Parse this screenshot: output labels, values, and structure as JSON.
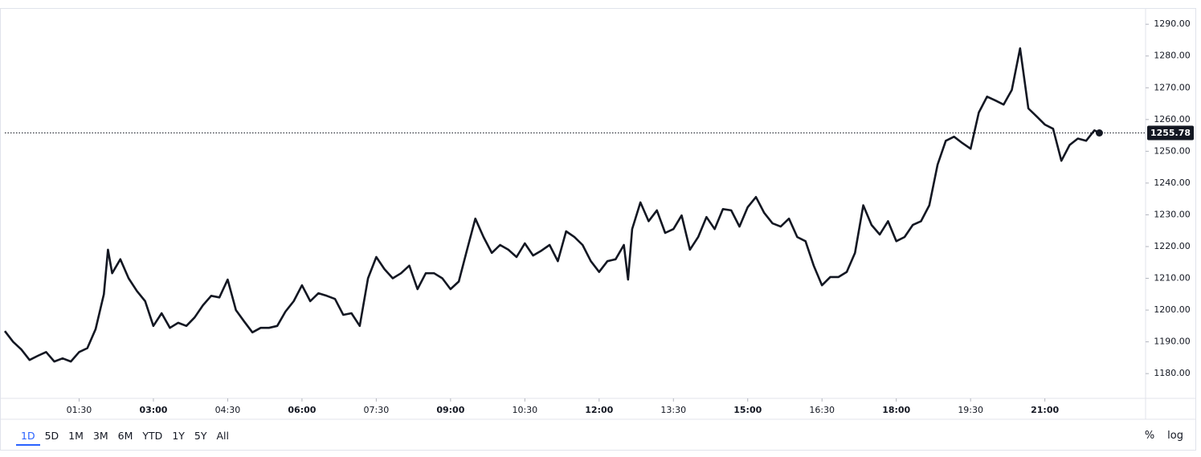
{
  "chart_data": {
    "type": "line",
    "color": "#131722",
    "x": [
      "00:00",
      "00:10",
      "00:20",
      "00:30",
      "00:40",
      "00:50",
      "01:00",
      "01:10",
      "01:20",
      "01:30",
      "01:40",
      "01:50",
      "02:00",
      "02:05",
      "02:10",
      "02:20",
      "02:30",
      "02:40",
      "02:50",
      "03:00",
      "03:10",
      "03:20",
      "03:30",
      "03:40",
      "03:50",
      "04:00",
      "04:10",
      "04:20",
      "04:30",
      "04:40",
      "04:50",
      "05:00",
      "05:10",
      "05:20",
      "05:30",
      "05:40",
      "05:50",
      "06:00",
      "06:10",
      "06:20",
      "06:30",
      "06:40",
      "06:50",
      "07:00",
      "07:10",
      "07:20",
      "07:30",
      "07:40",
      "07:50",
      "08:00",
      "08:10",
      "08:20",
      "08:30",
      "08:40",
      "08:50",
      "09:00",
      "09:10",
      "09:20",
      "09:30",
      "09:40",
      "09:50",
      "10:00",
      "10:10",
      "10:20",
      "10:30",
      "10:40",
      "10:50",
      "11:00",
      "11:10",
      "11:20",
      "11:30",
      "11:40",
      "11:50",
      "12:00",
      "12:10",
      "12:20",
      "12:30",
      "12:35",
      "12:40",
      "12:50",
      "13:00",
      "13:10",
      "13:20",
      "13:30",
      "13:40",
      "13:50",
      "14:00",
      "14:10",
      "14:20",
      "14:30",
      "14:40",
      "14:50",
      "15:00",
      "15:10",
      "15:20",
      "15:30",
      "15:40",
      "15:50",
      "16:00",
      "16:10",
      "16:20",
      "16:30",
      "16:40",
      "16:50",
      "17:00",
      "17:10",
      "17:20",
      "17:30",
      "17:40",
      "17:50",
      "18:00",
      "18:10",
      "18:20",
      "18:30",
      "18:40",
      "18:50",
      "19:00",
      "19:10",
      "19:20",
      "19:30",
      "19:40",
      "19:50",
      "20:00",
      "20:10",
      "20:20",
      "20:30",
      "20:40",
      "20:50",
      "21:00",
      "21:10",
      "21:20",
      "21:30",
      "21:40",
      "21:50",
      "22:00",
      "22:06"
    ],
    "values": [
      1193.4,
      1190,
      1187.6,
      1184.3,
      1185.6,
      1186.8,
      1183.8,
      1184.8,
      1183.8,
      1186.8,
      1188,
      1194,
      1205,
      1219,
      1211.6,
      1216,
      1210,
      1206,
      1202.8,
      1195,
      1199,
      1194.4,
      1196,
      1195,
      1197.7,
      1201.5,
      1204.5,
      1204,
      1209.6,
      1200,
      1196.4,
      1193,
      1194.4,
      1194.4,
      1195,
      1199.5,
      1202.8,
      1207.8,
      1202.8,
      1205.3,
      1204.5,
      1203.5,
      1198.5,
      1199,
      1195,
      1210,
      1216.7,
      1212.9,
      1210,
      1211.6,
      1214,
      1206.6,
      1211.6,
      1211.6,
      1210,
      1206.6,
      1209,
      1219,
      1228.8,
      1223,
      1218,
      1220.5,
      1219,
      1216.7,
      1221,
      1217.2,
      1218.7,
      1220.5,
      1215.4,
      1224.8,
      1223,
      1220.5,
      1215.4,
      1212,
      1215.4,
      1216,
      1220.5,
      1209.6,
      1225.5,
      1233.9,
      1228,
      1231.4,
      1224.3,
      1225.5,
      1229.8,
      1219,
      1223,
      1229.3,
      1225.5,
      1231.8,
      1231.4,
      1226.3,
      1232.4,
      1235.6,
      1230.6,
      1227.3,
      1226.3,
      1228.8,
      1223,
      1221.7,
      1214,
      1207.8,
      1210.4,
      1210.4,
      1212,
      1218,
      1233,
      1226.8,
      1223.8,
      1228,
      1221.7,
      1223,
      1226.8,
      1228,
      1233,
      1245.8,
      1253.3,
      1254.6,
      1252.6,
      1250.8,
      1262.2,
      1267.2,
      1266,
      1264.7,
      1269.3,
      1282.4,
      1263.5,
      1261,
      1258.4,
      1257.1,
      1247,
      1252,
      1254,
      1253.3,
      1256.6,
      1255.78
    ],
    "xlim": [
      "00:00",
      "23:02"
    ],
    "xticks": [
      "01:30",
      "03:00",
      "04:30",
      "06:00",
      "07:30",
      "09:00",
      "10:30",
      "12:00",
      "13:30",
      "15:00",
      "16:30",
      "18:00",
      "19:30",
      "21:00"
    ],
    "ylim": [
      1172.2,
      1294.6
    ],
    "yticks": [
      {
        "value": 1180,
        "label": "1180.00"
      },
      {
        "value": 1190,
        "label": "1190.00"
      },
      {
        "value": 1200,
        "label": "1200.00"
      },
      {
        "value": 1210,
        "label": "1210.00"
      },
      {
        "value": 1220,
        "label": "1220.00"
      },
      {
        "value": 1230,
        "label": "1230.00"
      },
      {
        "value": 1240,
        "label": "1240.00"
      },
      {
        "value": 1250,
        "label": "1250.00"
      },
      {
        "value": 1260,
        "label": "1260.00"
      },
      {
        "value": 1270,
        "label": "1270.00"
      },
      {
        "value": 1280,
        "label": "1280.00"
      },
      {
        "value": 1290,
        "label": "1290.00"
      }
    ]
  },
  "toolbar": {
    "ranges": [
      "1D",
      "5D",
      "1M",
      "3M",
      "6M",
      "YTD",
      "1Y",
      "5Y",
      "All"
    ],
    "options": [
      "%",
      "log"
    ]
  }
}
